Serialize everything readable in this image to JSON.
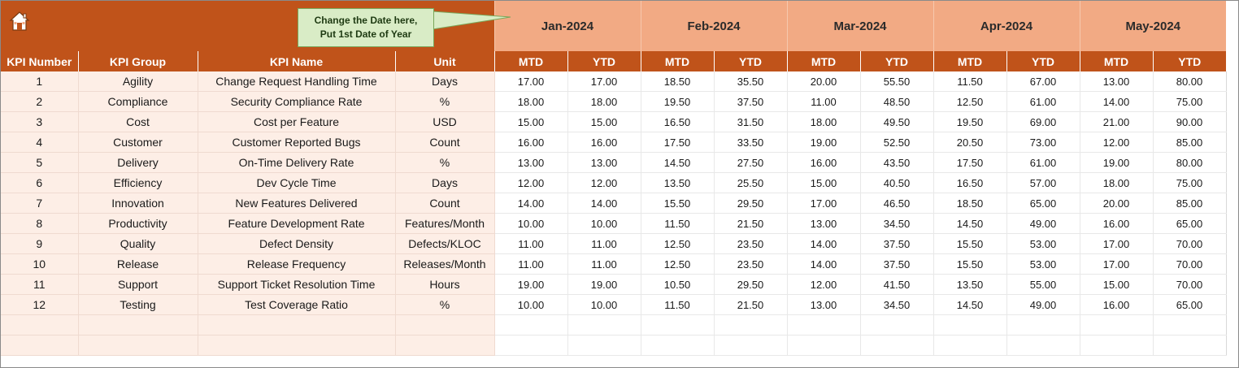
{
  "callout": {
    "line1": "Change the Date here,",
    "line2": "Put 1st Date of Year"
  },
  "icons": {
    "home": "home-icon"
  },
  "colors": {
    "brand": "#c0531a",
    "month_band": "#f2aa84",
    "kpi_fill": "#fdeee6",
    "callout_fill": "#d9ecc6"
  },
  "months": [
    "Jan-2024",
    "Feb-2024",
    "Mar-2024",
    "Apr-2024",
    "May-2024"
  ],
  "headers": {
    "kpi_number": "KPI Number",
    "kpi_group": "KPI Group",
    "kpi_name": "KPI Name",
    "unit": "Unit",
    "mtd": "MTD",
    "ytd": "YTD"
  },
  "rows": [
    {
      "num": "1",
      "group": "Agility",
      "name": "Change Request Handling Time",
      "unit": "Days",
      "values": [
        "17.00",
        "17.00",
        "18.50",
        "35.50",
        "20.00",
        "55.50",
        "11.50",
        "67.00",
        "13.00",
        "80.00"
      ]
    },
    {
      "num": "2",
      "group": "Compliance",
      "name": "Security Compliance Rate",
      "unit": "%",
      "values": [
        "18.00",
        "18.00",
        "19.50",
        "37.50",
        "11.00",
        "48.50",
        "12.50",
        "61.00",
        "14.00",
        "75.00"
      ]
    },
    {
      "num": "3",
      "group": "Cost",
      "name": "Cost per Feature",
      "unit": "USD",
      "values": [
        "15.00",
        "15.00",
        "16.50",
        "31.50",
        "18.00",
        "49.50",
        "19.50",
        "69.00",
        "21.00",
        "90.00"
      ]
    },
    {
      "num": "4",
      "group": "Customer",
      "name": "Customer Reported Bugs",
      "unit": "Count",
      "values": [
        "16.00",
        "16.00",
        "17.50",
        "33.50",
        "19.00",
        "52.50",
        "20.50",
        "73.00",
        "12.00",
        "85.00"
      ]
    },
    {
      "num": "5",
      "group": "Delivery",
      "name": "On-Time Delivery Rate",
      "unit": "%",
      "values": [
        "13.00",
        "13.00",
        "14.50",
        "27.50",
        "16.00",
        "43.50",
        "17.50",
        "61.00",
        "19.00",
        "80.00"
      ]
    },
    {
      "num": "6",
      "group": "Efficiency",
      "name": "Dev Cycle Time",
      "unit": "Days",
      "values": [
        "12.00",
        "12.00",
        "13.50",
        "25.50",
        "15.00",
        "40.50",
        "16.50",
        "57.00",
        "18.00",
        "75.00"
      ]
    },
    {
      "num": "7",
      "group": "Innovation",
      "name": "New Features Delivered",
      "unit": "Count",
      "values": [
        "14.00",
        "14.00",
        "15.50",
        "29.50",
        "17.00",
        "46.50",
        "18.50",
        "65.00",
        "20.00",
        "85.00"
      ]
    },
    {
      "num": "8",
      "group": "Productivity",
      "name": "Feature Development Rate",
      "unit": "Features/Month",
      "values": [
        "10.00",
        "10.00",
        "11.50",
        "21.50",
        "13.00",
        "34.50",
        "14.50",
        "49.00",
        "16.00",
        "65.00"
      ]
    },
    {
      "num": "9",
      "group": "Quality",
      "name": "Defect Density",
      "unit": "Defects/KLOC",
      "values": [
        "11.00",
        "11.00",
        "12.50",
        "23.50",
        "14.00",
        "37.50",
        "15.50",
        "53.00",
        "17.00",
        "70.00"
      ]
    },
    {
      "num": "10",
      "group": "Release",
      "name": "Release Frequency",
      "unit": "Releases/Month",
      "values": [
        "11.00",
        "11.00",
        "12.50",
        "23.50",
        "14.00",
        "37.50",
        "15.50",
        "53.00",
        "17.00",
        "70.00"
      ]
    },
    {
      "num": "11",
      "group": "Support",
      "name": "Support Ticket Resolution Time",
      "unit": "Hours",
      "values": [
        "19.00",
        "19.00",
        "10.50",
        "29.50",
        "12.00",
        "41.50",
        "13.50",
        "55.00",
        "15.00",
        "70.00"
      ]
    },
    {
      "num": "12",
      "group": "Testing",
      "name": "Test Coverage Ratio",
      "unit": "%",
      "values": [
        "10.00",
        "10.00",
        "11.50",
        "21.50",
        "13.00",
        "34.50",
        "14.50",
        "49.00",
        "16.00",
        "65.00"
      ]
    },
    {
      "num": "",
      "group": "",
      "name": "",
      "unit": "",
      "values": [
        "",
        "",
        "",
        "",
        "",
        "",
        "",
        "",
        "",
        ""
      ]
    },
    {
      "num": "",
      "group": "",
      "name": "",
      "unit": "",
      "values": [
        "",
        "",
        "",
        "",
        "",
        "",
        "",
        "",
        "",
        ""
      ]
    }
  ]
}
